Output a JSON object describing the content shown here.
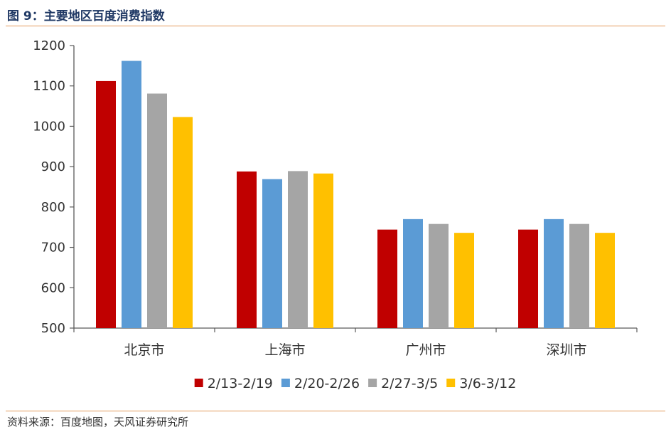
{
  "figure_title": "图 9：主要地区百度消费指数",
  "source": "资料来源：百度地图，天风证券研究所",
  "colors": {
    "accent_rule": "#e39a5b",
    "title": "#1f3864",
    "axis": "#595959"
  },
  "chart_data": {
    "type": "bar",
    "title": "",
    "xlabel": "",
    "ylabel": "",
    "ylim": [
      500,
      1200
    ],
    "yticks": [
      500,
      600,
      700,
      800,
      900,
      1000,
      1100,
      1200
    ],
    "grid": false,
    "legend_position": "bottom",
    "categories": [
      "北京市",
      "上海市",
      "广州市",
      "深圳市"
    ],
    "series": [
      {
        "name": "2/13-2/19",
        "color": "#c00000",
        "values": [
          1112,
          888,
          744,
          744
        ]
      },
      {
        "name": "2/20-2/26",
        "color": "#5b9bd5",
        "values": [
          1162,
          869,
          770,
          770
        ]
      },
      {
        "name": "2/27-3/5",
        "color": "#a5a5a5",
        "values": [
          1081,
          889,
          758,
          758
        ]
      },
      {
        "name": "3/6-3/12",
        "color": "#ffc000",
        "values": [
          1023,
          883,
          736,
          736
        ]
      }
    ]
  }
}
